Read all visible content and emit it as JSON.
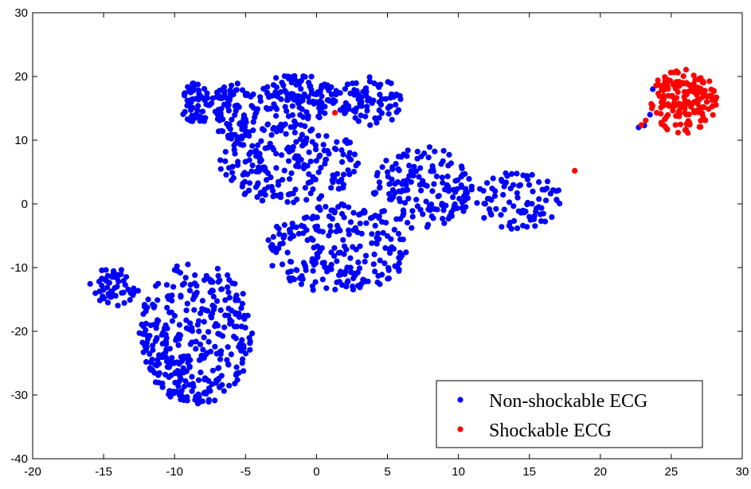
{
  "chart_data": {
    "type": "scatter",
    "title": "",
    "xlabel": "",
    "ylabel": "",
    "xlim": [
      -20,
      30
    ],
    "ylim": [
      -40,
      30
    ],
    "xticks": [
      -20,
      -15,
      -10,
      -5,
      0,
      5,
      10,
      15,
      20,
      25,
      30
    ],
    "yticks": [
      -40,
      -30,
      -20,
      -10,
      0,
      10,
      20,
      30
    ],
    "grid": false,
    "legend_position": "bottom-right",
    "series": [
      {
        "name": "Non-shockable ECG",
        "color": "#0000ff",
        "clusters": [
          {
            "region": "upper-left",
            "x": [
              -9.5,
              -7.5
            ],
            "y": [
              12.0,
              19.0
            ],
            "count": 60
          },
          {
            "region": "upper-left-center",
            "x": [
              -7.5,
              -4.0
            ],
            "y": [
              10.0,
              19.0
            ],
            "count": 90
          },
          {
            "region": "upper-center",
            "x": [
              -4.0,
              1.5
            ],
            "y": [
              13.0,
              20.5
            ],
            "count": 120
          },
          {
            "region": "upper-right-top",
            "x": [
              1.5,
              6.0
            ],
            "y": [
              12.0,
              20.0
            ],
            "count": 80
          },
          {
            "region": "central",
            "x": [
              -7.0,
              3.0
            ],
            "y": [
              0.0,
              13.0
            ],
            "count": 220
          },
          {
            "region": "middle-lower",
            "x": [
              -3.5,
              6.5
            ],
            "y": [
              -14.0,
              0.0
            ],
            "count": 230
          },
          {
            "region": "right-arm",
            "x": [
              4.0,
              11.0
            ],
            "y": [
              -4.0,
              9.0
            ],
            "count": 160
          },
          {
            "region": "right-tail",
            "x": [
              11.0,
              17.5
            ],
            "y": [
              -4.0,
              5.0
            ],
            "count": 90
          },
          {
            "region": "bottom-left-arm",
            "x": [
              -16.0,
              -12.5
            ],
            "y": [
              -16.0,
              -10.0
            ],
            "count": 50
          },
          {
            "region": "bottom-left-main",
            "x": [
              -12.5,
              -4.5
            ],
            "y": [
              -31.5,
              -9.0
            ],
            "count": 340
          }
        ],
        "extra_points": [
          {
            "x": -9.3,
            "y": 17.0
          },
          {
            "x": 22.7,
            "y": 12.0
          },
          {
            "x": 23.1,
            "y": 12.3
          },
          {
            "x": 23.5,
            "y": 14.0
          },
          {
            "x": 23.7,
            "y": 18.0
          }
        ]
      },
      {
        "name": "Shockable ECG",
        "color": "#ff0000",
        "clusters": [
          {
            "region": "far-right",
            "x": [
              23.5,
              28.2
            ],
            "y": [
              11.0,
              21.2
            ],
            "count": 170
          }
        ],
        "extra_points": [
          {
            "x": 1.3,
            "y": 14.3
          },
          {
            "x": 18.2,
            "y": 5.2
          },
          {
            "x": 22.9,
            "y": 12.4
          },
          {
            "x": 23.2,
            "y": 13.1
          }
        ]
      }
    ]
  }
}
